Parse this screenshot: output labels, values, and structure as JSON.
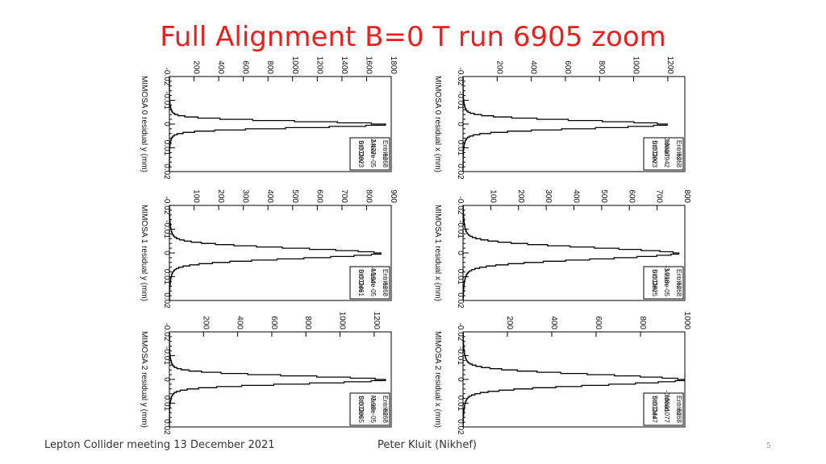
{
  "slide": {
    "title": "Full Alignment B=0 T run 6905 zoom",
    "footer_left": "Lepton Collider meeting 13 December 2021",
    "footer_center": "Peter Kluit (Nikhef)",
    "page_number": "5"
  },
  "chart_data": [
    {
      "type": "bar",
      "ylabel": "MIMOSA 0 residual y (mm)",
      "x_ticks": [
        "-0.02",
        "-0.01",
        "0",
        "0.01",
        "0.02"
      ],
      "xlim": [
        -0.02,
        0.02
      ],
      "ylim": [
        0,
        1800
      ],
      "y_ticks": [
        "200",
        "400",
        "600",
        "800",
        "1000",
        "1200",
        "1400",
        "1600",
        "1800"
      ],
      "stats": {
        "entries_label": "Entries",
        "entries": "6268",
        "mean_label": "Mean",
        "mean": "2.477e-05",
        "std_label": "Std Dev",
        "std": "0.002023"
      },
      "peak": 1760,
      "width": 0.0014
    },
    {
      "type": "bar",
      "ylabel": "MIMOSA 0 residual x (mm)",
      "x_ticks": [
        "-0.02",
        "-0.01",
        "0",
        "0.01",
        "0.02"
      ],
      "xlim": [
        -0.02,
        0.02
      ],
      "ylim": [
        0,
        1300
      ],
      "y_ticks": [
        "200",
        "400",
        "600",
        "800",
        "1000",
        "1200"
      ],
      "stats": {
        "entries_label": "Entries",
        "entries": "6268",
        "mean_label": "Mean",
        "mean": "0.0007942",
        "std_label": "Std Dev",
        "std": "0.002023"
      },
      "peak": 1200,
      "width": 0.0017
    },
    {
      "type": "bar",
      "ylabel": "MIMOSA 1 residual y (mm)",
      "x_ticks": [
        "-0.02",
        "-0.01",
        "0",
        "0.01",
        "0.02"
      ],
      "xlim": [
        -0.02,
        0.02
      ],
      "ylim": [
        0,
        900
      ],
      "y_ticks": [
        "100",
        "200",
        "300",
        "400",
        "500",
        "600",
        "700",
        "800",
        "900"
      ],
      "stats": {
        "entries_label": "Entries",
        "entries": "6268",
        "mean_label": "Mean",
        "mean": "4.184e-05",
        "std_label": "Std Dev",
        "std": "0.002461"
      },
      "peak": 860,
      "width": 0.0022
    },
    {
      "type": "bar",
      "ylabel": "MIMOSA 1 residual x (mm)",
      "x_ticks": [
        "-0.02",
        "-0.01",
        "0",
        "0.01",
        "0.02"
      ],
      "xlim": [
        -0.02,
        0.02
      ],
      "ylim": [
        0,
        800
      ],
      "y_ticks": [
        "100",
        "200",
        "300",
        "400",
        "500",
        "600",
        "700",
        "800"
      ],
      "stats": {
        "entries_label": "Entries",
        "entries": "6268",
        "mean_label": "Mean",
        "mean": "-3.718e-05",
        "std_label": "Std Dev",
        "std": "0.002825"
      },
      "peak": 780,
      "width": 0.0025
    },
    {
      "type": "bar",
      "ylabel": "MIMOSA 2 residual y (mm)",
      "x_ticks": [
        "-0.02",
        "-0.01",
        "0",
        "0.01",
        "0.02"
      ],
      "xlim": [
        -0.02,
        0.02
      ],
      "ylim": [
        0,
        1300
      ],
      "y_ticks": [
        "200",
        "400",
        "600",
        "800",
        "1000",
        "1200"
      ],
      "stats": {
        "entries_label": "Entries",
        "entries": "6268",
        "mean_label": "Mean",
        "mean": "-3.98e-05",
        "std_label": "Std Dev",
        "std": "0.002055"
      },
      "peak": 1270,
      "width": 0.0017
    },
    {
      "type": "bar",
      "ylabel": "MIMOSA 2 residual x (mm)",
      "x_ticks": [
        "-0.02",
        "-0.01",
        "0",
        "0.01",
        "0.02"
      ],
      "xlim": [
        -0.02,
        0.02
      ],
      "ylim": [
        0,
        1000
      ],
      "y_ticks": [
        "200",
        "400",
        "600",
        "800",
        "1000"
      ],
      "stats": {
        "entries_label": "Entries",
        "entries": "6268",
        "mean_label": "Mean",
        "mean": "-0.0001077",
        "std_label": "Std Dev",
        "std": "0.002447"
      },
      "peak": 1000,
      "width": 0.0023
    }
  ]
}
